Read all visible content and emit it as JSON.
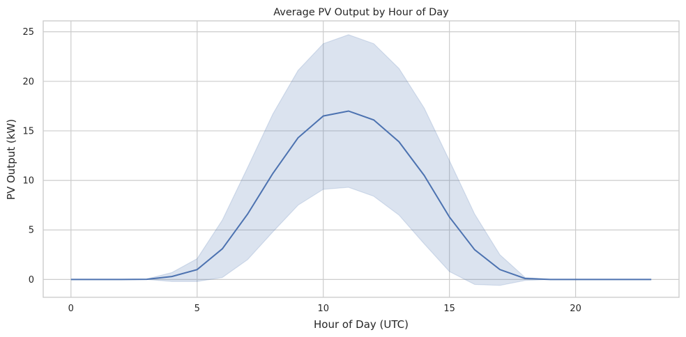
{
  "chart_data": {
    "type": "line",
    "title": "Average PV Output by Hour of Day",
    "xlabel": "Hour of Day (UTC)",
    "ylabel": "PV Output (kW)",
    "xlim": [
      -1.1,
      24.1
    ],
    "ylim": [
      -1.8,
      26.1
    ],
    "xticks": [
      0,
      5,
      10,
      15,
      20
    ],
    "yticks": [
      0,
      5,
      10,
      15,
      20,
      25
    ],
    "grid": true,
    "legend": "none",
    "colors": {
      "line": "#4c72b0",
      "band": "#4c72b0",
      "grid": "#cccccc",
      "frame": "#cccccc"
    },
    "series": [
      {
        "x": [
          0,
          1,
          2,
          3,
          4,
          5,
          6,
          7,
          8,
          9,
          10,
          11,
          12,
          13,
          14,
          15,
          16,
          17,
          18,
          19,
          20,
          21,
          22,
          23
        ],
        "values": [
          0,
          0,
          0,
          0.02,
          0.3,
          1.0,
          3.1,
          6.6,
          10.7,
          14.3,
          16.5,
          17.0,
          16.1,
          13.9,
          10.5,
          6.3,
          3.0,
          1.0,
          0.1,
          0,
          0,
          0,
          0,
          0
        ],
        "band_upper": [
          0,
          0,
          0,
          0.05,
          0.7,
          2.1,
          6.0,
          11.3,
          16.7,
          21.1,
          23.8,
          24.7,
          23.8,
          21.3,
          17.3,
          12.0,
          6.6,
          2.5,
          0.2,
          0,
          0,
          0,
          0,
          0
        ],
        "band_lower": [
          0,
          0,
          0,
          0,
          -0.2,
          -0.2,
          0.2,
          2.0,
          4.8,
          7.5,
          9.1,
          9.3,
          8.4,
          6.5,
          3.6,
          0.8,
          -0.5,
          -0.6,
          -0.1,
          0,
          0,
          0,
          0,
          0
        ]
      }
    ]
  }
}
